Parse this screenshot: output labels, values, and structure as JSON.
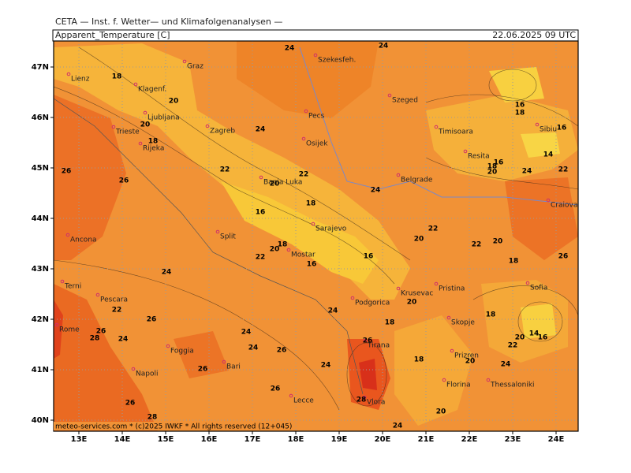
{
  "header": {
    "institute": "CETA — Inst. f. Wetter— und Klimafolgenanalysen —",
    "variable": "Apparent_Temperature [C]",
    "valid_time": "22.06.2025 09 UTC"
  },
  "footer": "meteo-services.com * (c)2025 IWKF * All rights reserved (12+045)",
  "longitude_labels": [
    "13E",
    "14E",
    "15E",
    "16E",
    "17E",
    "18E",
    "19E",
    "20E",
    "21E",
    "22E",
    "23E",
    "24E"
  ],
  "latitude_labels": [
    "47N",
    "46N",
    "45N",
    "44N",
    "43N",
    "42N",
    "41N",
    "40N"
  ],
  "cities": [
    "Graz",
    "Szekesfeh.",
    "Lienz",
    "Klagenf.",
    "Szeged",
    "Ljubljana",
    "Pecs",
    "Zagreb",
    "Trieste",
    "Rijeka",
    "Osijek",
    "Timisoara",
    "Sibiu",
    "Resita",
    "Banja Luka",
    "Belgrade",
    "Craiova",
    "Sarajevo",
    "Split",
    "Ancona",
    "Mostar",
    "Pristina",
    "Sofia",
    "Terni",
    "Pescara",
    "Podgorica",
    "Krusevac",
    "Skopje",
    "Rome",
    "Foggia",
    "Tirana",
    "Prizren",
    "Bari",
    "Napoli",
    "Florina",
    "Thessaloniki",
    "Lecce",
    "Vlora"
  ],
  "contour_labels": [
    24,
    24,
    18,
    20,
    20,
    18,
    24,
    22,
    20,
    22,
    24,
    18,
    16,
    26,
    26,
    18,
    20,
    22,
    16,
    16,
    20,
    22,
    22,
    20,
    18,
    26,
    24,
    22,
    26,
    26,
    28,
    24,
    24,
    24,
    26,
    24,
    18,
    20,
    18,
    20,
    22,
    14,
    16,
    26,
    24,
    18,
    20,
    24,
    26,
    26,
    26,
    28,
    28,
    20,
    24,
    16,
    18,
    16,
    18,
    20,
    14,
    24,
    22,
    16
  ]
}
